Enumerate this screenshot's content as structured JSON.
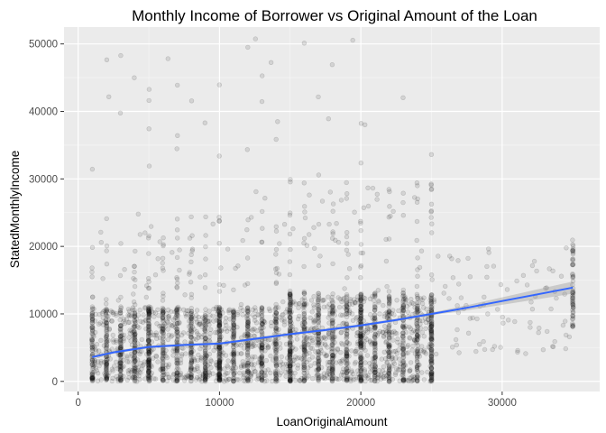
{
  "chart_data": {
    "type": "scatter",
    "title": "Monthly Income of Borrower vs Original Amount of the Loan",
    "xlabel": "LoanOriginalAmount",
    "ylabel": "StatedMonthlyIncome",
    "xlim": [
      -1000,
      36900
    ],
    "ylim": [
      -1500,
      52500
    ],
    "x_ticks": [
      {
        "value": 0,
        "label": "0"
      },
      {
        "value": 10000,
        "label": "10000"
      },
      {
        "value": 20000,
        "label": "20000"
      },
      {
        "value": 30000,
        "label": "30000"
      }
    ],
    "y_ticks": [
      {
        "value": 0,
        "label": "0"
      },
      {
        "value": 10000,
        "label": "10000"
      },
      {
        "value": 20000,
        "label": "20000"
      },
      {
        "value": 30000,
        "label": "30000"
      },
      {
        "value": 40000,
        "label": "40000"
      },
      {
        "value": 50000,
        "label": "50000"
      }
    ],
    "grid": true,
    "point_color": "#000000",
    "point_alpha": 0.1,
    "smooth_color": "#3366FF",
    "smooth_ribbon_color": "#999999",
    "stacked_amounts": [
      1000,
      2000,
      3000,
      4000,
      5000,
      6000,
      7000,
      8000,
      9000,
      10000,
      11000,
      12000,
      13000,
      14000,
      15000,
      16000,
      17000,
      18000,
      19000,
      20000,
      21000,
      22000,
      23000,
      24000,
      25000,
      35000
    ],
    "smooth_trend": {
      "x": [
        1000,
        2500,
        5000,
        7500,
        10000,
        12500,
        15000,
        17500,
        20000,
        22500,
        25000,
        27500,
        30000,
        32500,
        35000
      ],
      "y": [
        3600,
        4300,
        5100,
        5400,
        5600,
        6300,
        7000,
        7600,
        8300,
        9100,
        10000,
        10900,
        11900,
        12900,
        13900
      ]
    }
  }
}
